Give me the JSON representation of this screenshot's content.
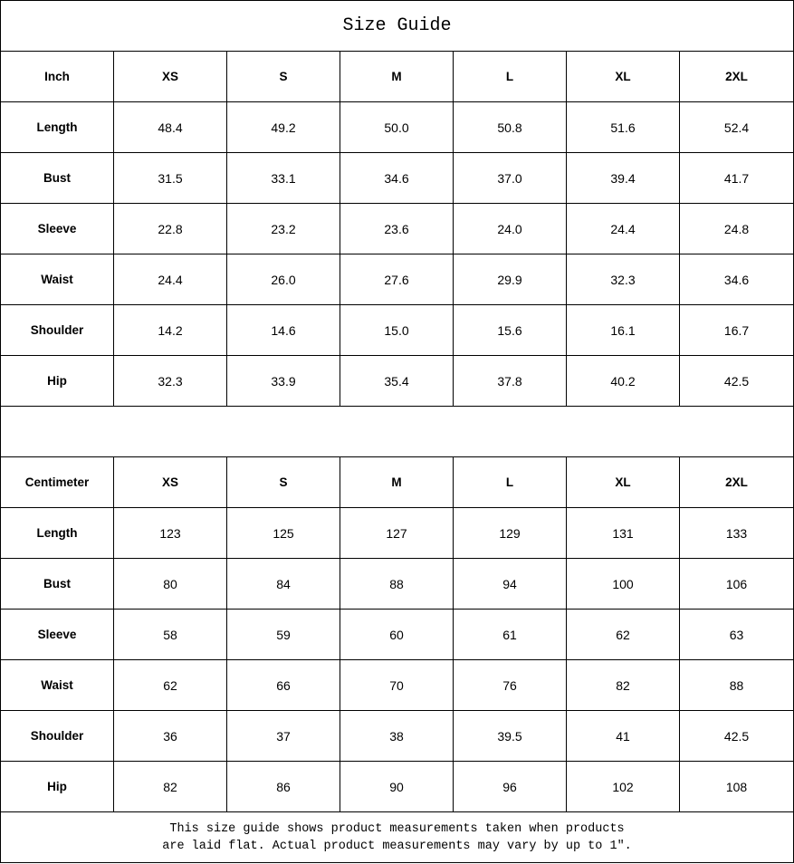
{
  "title": "Size Guide",
  "inch": {
    "headers": [
      "Inch",
      "XS",
      "S",
      "M",
      "L",
      "XL",
      "2XL"
    ],
    "rows": [
      {
        "label": "Length",
        "values": [
          "48.4",
          "49.2",
          "50.0",
          "50.8",
          "51.6",
          "52.4"
        ]
      },
      {
        "label": "Bust",
        "values": [
          "31.5",
          "33.1",
          "34.6",
          "37.0",
          "39.4",
          "41.7"
        ]
      },
      {
        "label": "Sleeve",
        "values": [
          "22.8",
          "23.2",
          "23.6",
          "24.0",
          "24.4",
          "24.8"
        ]
      },
      {
        "label": "Waist",
        "values": [
          "24.4",
          "26.0",
          "27.6",
          "29.9",
          "32.3",
          "34.6"
        ]
      },
      {
        "label": "Shoulder",
        "values": [
          "14.2",
          "14.6",
          "15.0",
          "15.6",
          "16.1",
          "16.7"
        ]
      },
      {
        "label": "Hip",
        "values": [
          "32.3",
          "33.9",
          "35.4",
          "37.8",
          "40.2",
          "42.5"
        ]
      }
    ]
  },
  "centimeter": {
    "headers": [
      "Centimeter",
      "XS",
      "S",
      "M",
      "L",
      "XL",
      "2XL"
    ],
    "rows": [
      {
        "label": "Length",
        "values": [
          "123",
          "125",
          "127",
          "129",
          "131",
          "133"
        ]
      },
      {
        "label": "Bust",
        "values": [
          "80",
          "84",
          "88",
          "94",
          "100",
          "106"
        ]
      },
      {
        "label": "Sleeve",
        "values": [
          "58",
          "59",
          "60",
          "61",
          "62",
          "63"
        ]
      },
      {
        "label": "Waist",
        "values": [
          "62",
          "66",
          "70",
          "76",
          "82",
          "88"
        ]
      },
      {
        "label": "Shoulder",
        "values": [
          "36",
          "37",
          "38",
          "39.5",
          "41",
          "42.5"
        ]
      },
      {
        "label": "Hip",
        "values": [
          "82",
          "86",
          "90",
          "96",
          "102",
          "108"
        ]
      }
    ]
  },
  "note": {
    "line1": "This size guide shows product measurements taken when products",
    "line2": "are laid flat. Actual product measurements may vary by up to 1″."
  }
}
